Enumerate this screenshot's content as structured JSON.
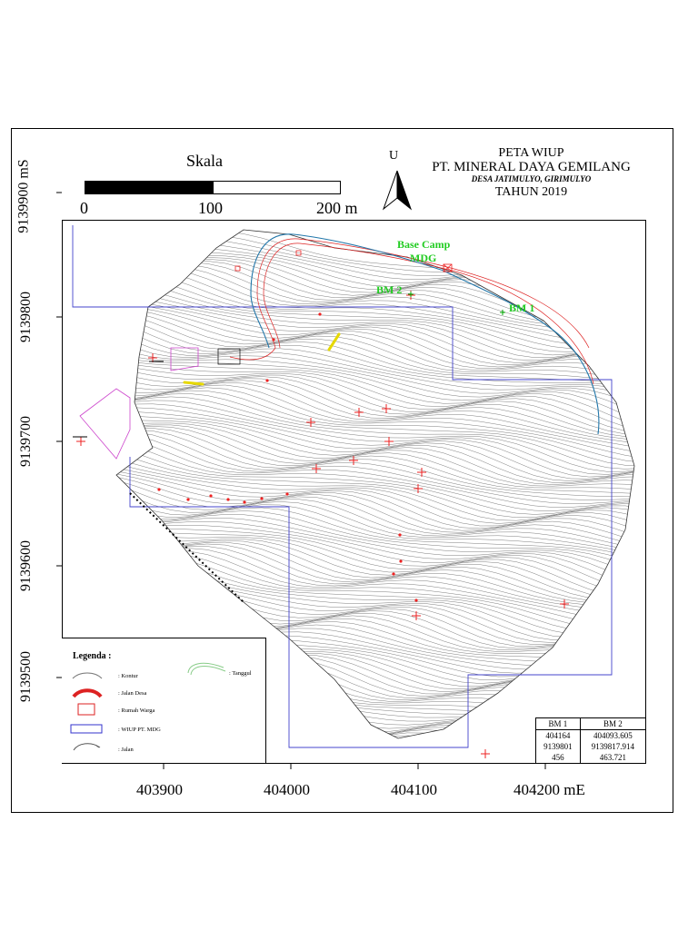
{
  "title": {
    "line1": "PETA WIUP",
    "line2": "PT. MINERAL DAYA GEMILANG",
    "line3": "DESA JATIMULYO, GIRIMULYO",
    "line4": "TAHUN 2019"
  },
  "scale": {
    "title": "Skala",
    "ticks": [
      "0",
      "100",
      "200 m"
    ]
  },
  "north": {
    "label": "U",
    "icon": "north-arrow-icon"
  },
  "y_axis": {
    "labels": [
      "9139900 mS",
      "9139800",
      "9139700",
      "9139600",
      "9139500"
    ]
  },
  "x_axis": {
    "labels": [
      "403900",
      "404000",
      "404100",
      "404200 mE"
    ]
  },
  "map_labels": {
    "base_camp_1": "Base Camp",
    "base_camp_2": "MDG",
    "bm2": "BM 2",
    "bm1": "BM 1"
  },
  "legend": {
    "title": "Legenda :",
    "items": [
      {
        "label": ": Kontur",
        "icon": "contour-line-icon"
      },
      {
        "label": ": Jalan Desa",
        "icon": "village-road-icon"
      },
      {
        "label": ": Rumah Warga",
        "icon": "house-icon"
      },
      {
        "label": ": WIUP PT. MDG",
        "icon": "wiup-boundary-icon"
      },
      {
        "label": ": Jalan",
        "icon": "road-icon"
      },
      {
        "label": ": Tanggul",
        "icon": "embankment-icon"
      }
    ]
  },
  "bm_table": {
    "headers": [
      "BM 1",
      "BM 2"
    ],
    "rows": [
      [
        "404164",
        "404093.605"
      ],
      [
        "9139801",
        "9139817.914"
      ],
      [
        "456",
        "463.721"
      ]
    ]
  },
  "colors": {
    "contour": "#444444",
    "boundary": "#3333cc",
    "road": "#dd2222",
    "label_green": "#22cc22",
    "marker": "#ee2222"
  }
}
